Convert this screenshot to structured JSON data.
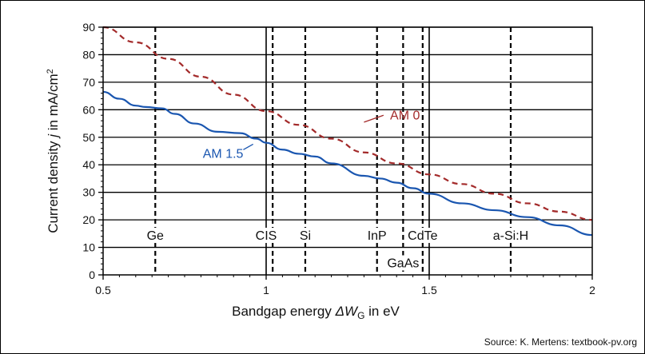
{
  "chart_data": {
    "type": "line",
    "xlabel_prefix": "Bandgap energy ",
    "xlabel_symbol": "ΔW",
    "xlabel_sub": "G",
    "xlabel_suffix": " in eV",
    "ylabel_prefix": "Current density ",
    "ylabel_symbol": "j",
    "ylabel_suffix": " in mA/cm",
    "ylabel_sup": "2",
    "xlim": [
      0.5,
      2.0
    ],
    "ylim": [
      0,
      90
    ],
    "xticks": [
      0.5,
      1,
      1.5,
      2
    ],
    "xtick_labels": [
      "0.5",
      "1",
      "1.5",
      "2"
    ],
    "yticks": [
      0,
      10,
      20,
      30,
      40,
      50,
      60,
      70,
      80,
      90
    ],
    "ytick_labels": [
      "0",
      "10",
      "20",
      "30",
      "40",
      "50",
      "60",
      "70",
      "80",
      "90"
    ],
    "grid": "horizontal",
    "series": [
      {
        "name": "AM 0",
        "color": "#a32a2a",
        "style": "dashed",
        "x": [
          0.5,
          0.6,
          0.7,
          0.8,
          0.9,
          1.0,
          1.1,
          1.2,
          1.3,
          1.4,
          1.5,
          1.6,
          1.7,
          1.8,
          1.9,
          2.0
        ],
        "y": [
          90,
          84.5,
          78.5,
          72,
          65.5,
          59.5,
          54.5,
          49.5,
          44.5,
          40.5,
          36.5,
          33,
          29.5,
          26,
          23,
          20
        ]
      },
      {
        "name": "AM 1.5",
        "color": "#1a56b0",
        "style": "solid",
        "x": [
          0.5,
          0.55,
          0.6,
          0.63,
          0.68,
          0.72,
          0.78,
          0.85,
          0.92,
          0.97,
          1.0,
          1.05,
          1.1,
          1.15,
          1.2,
          1.3,
          1.35,
          1.4,
          1.45,
          1.5,
          1.6,
          1.7,
          1.8,
          1.9,
          2.0
        ],
        "y": [
          66.5,
          64,
          61.5,
          61,
          60.5,
          58.5,
          55,
          52,
          51.5,
          49.5,
          48,
          45.5,
          44,
          43,
          40.5,
          36,
          35,
          33.5,
          31.5,
          29.5,
          26,
          23.5,
          21,
          18,
          14.5
        ]
      }
    ],
    "materials": [
      {
        "label": "Ge",
        "x": 0.66,
        "style": "dashed",
        "label_row": "upper"
      },
      {
        "label": "CIS",
        "x": 1.0,
        "style": "solid",
        "label_row": "upper"
      },
      {
        "label": "",
        "x": 1.02,
        "style": "dashed",
        "label_row": "upper"
      },
      {
        "label": "Si",
        "x": 1.12,
        "style": "dashed",
        "label_row": "upper"
      },
      {
        "label": "InP",
        "x": 1.34,
        "style": "dashed",
        "label_row": "upper"
      },
      {
        "label": "GaAs",
        "x": 1.42,
        "style": "dashed",
        "label_row": "lower"
      },
      {
        "label": "CdTe",
        "x": 1.48,
        "style": "dashed",
        "label_row": "upper"
      },
      {
        "label": "",
        "x": 1.5,
        "style": "solid",
        "label_row": "upper"
      },
      {
        "label": "a-Si:H",
        "x": 1.75,
        "style": "dashed",
        "label_row": "upper"
      }
    ],
    "annotations": [
      {
        "text": "AM 0",
        "series": 0
      },
      {
        "text": "AM 1.5",
        "series": 1
      }
    ]
  },
  "source": "Source: K. Mertens: textbook-pv.org"
}
